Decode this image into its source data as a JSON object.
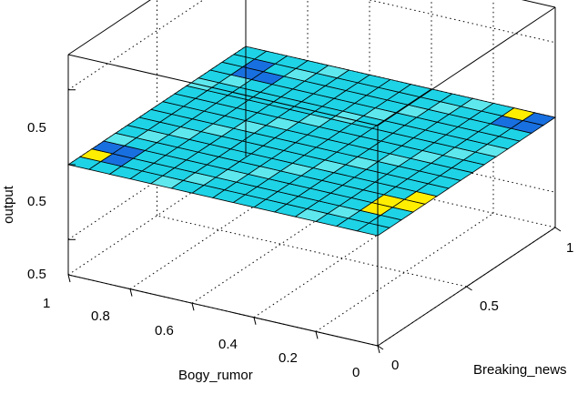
{
  "chart_data": {
    "type": "surface",
    "title": "",
    "xlabel": "Bogy_rumor",
    "ylabel": "Breaking_news",
    "zlabel": "output",
    "xlim": [
      0,
      1
    ],
    "ylim": [
      0,
      1
    ],
    "x_ticks": [
      "1",
      "0.8",
      "0.6",
      "0.4",
      "0.2",
      "0"
    ],
    "y_ticks": [
      "0",
      "0.5",
      "1"
    ],
    "z_ticks": [
      "0.5",
      "0.5",
      "0.5"
    ],
    "grid": true,
    "colormap": {
      "typical": "#1ed3e6",
      "low": "#1870e0",
      "high": "#ffee00",
      "mid": "#5ee8ee"
    },
    "surface": {
      "resolution": 15,
      "output_value": 0.5,
      "note_values": {
        "corner_low": "#1870e0",
        "corner_high": "#ffee00"
      }
    }
  }
}
